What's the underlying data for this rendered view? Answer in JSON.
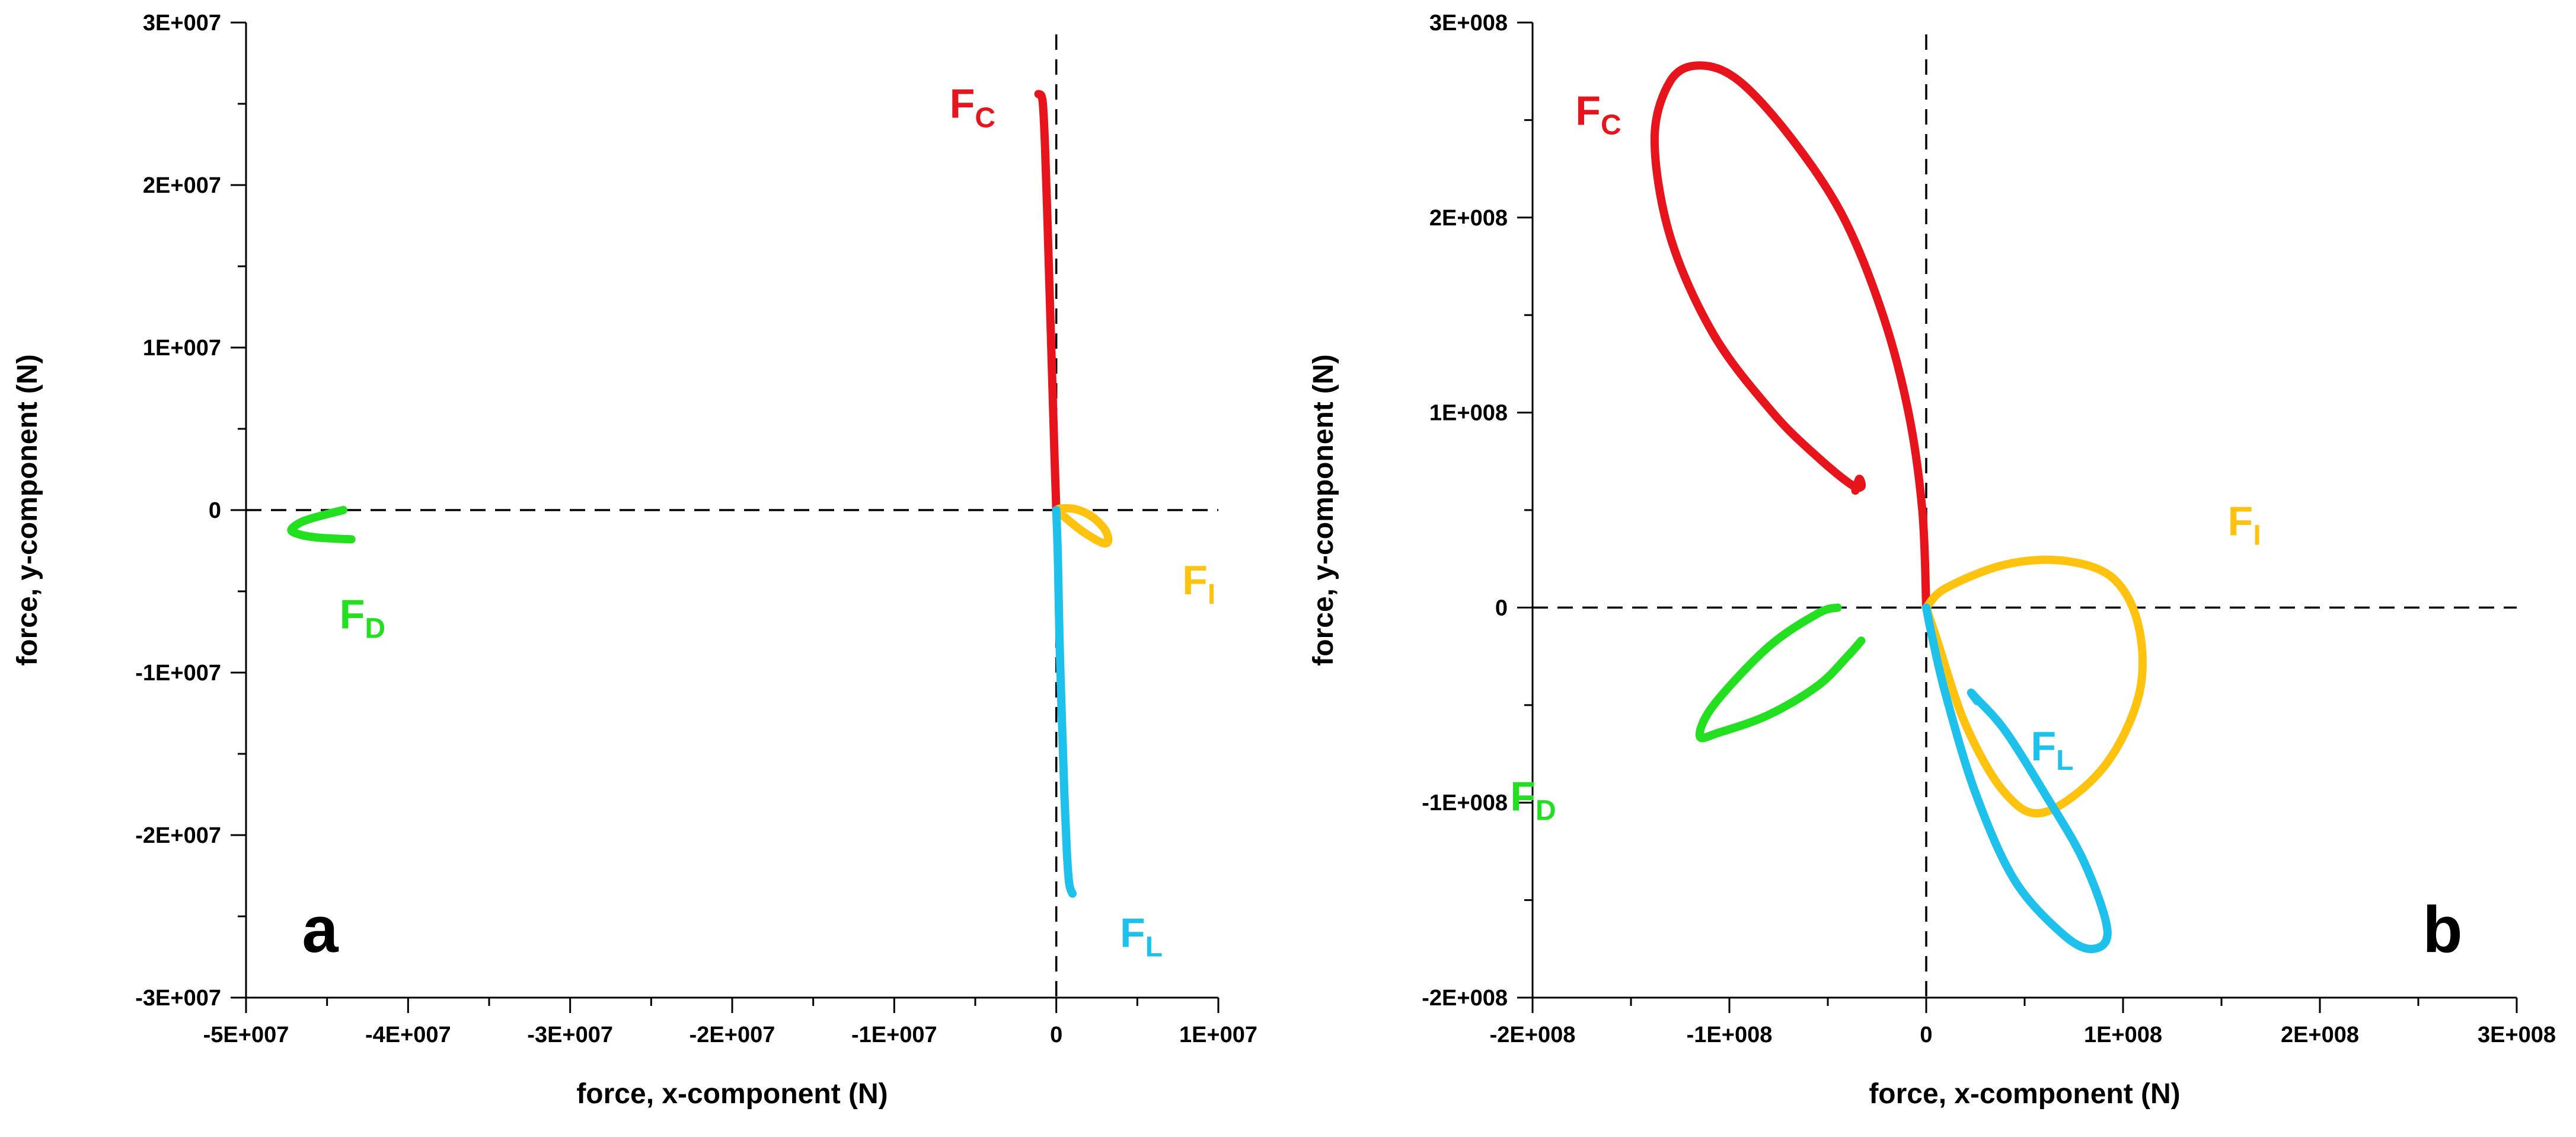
{
  "chart_data": [
    {
      "type": "line",
      "panel_label": "a",
      "xlabel": "force, x-component (N)",
      "ylabel": "force, y-component (N)",
      "xlim": [
        -50000000,
        10000000
      ],
      "ylim": [
        -30000000,
        30000000
      ],
      "x_ticks": [
        -50000000,
        -40000000,
        -30000000,
        -20000000,
        -10000000,
        0,
        10000000
      ],
      "x_tick_labels": [
        "-5E+007",
        "-4E+007",
        "-3E+007",
        "-2E+007",
        "-1E+007",
        "0",
        "1E+007"
      ],
      "y_ticks": [
        -30000000,
        -20000000,
        -10000000,
        0,
        10000000,
        20000000,
        30000000
      ],
      "y_tick_labels": [
        "-3E+007",
        "-2E+007",
        "-1E+007",
        "0",
        "1E+007",
        "2E+007",
        "3E+007"
      ],
      "zero_lines": "dashed",
      "series": [
        {
          "name": "F_C",
          "label_main": "F",
          "label_sub": "C",
          "label_position": "upper-left",
          "color": "#e8141c",
          "points": [
            [
              0,
              0
            ],
            [
              -100000,
              3000000
            ],
            [
              -250000,
              8000000
            ],
            [
              -400000,
              13000000
            ],
            [
              -550000,
              18000000
            ],
            [
              -700000,
              22500000
            ],
            [
              -850000,
              25200000
            ],
            [
              -1100000,
              25600000
            ]
          ]
        },
        {
          "name": "F_I",
          "label_main": "F",
          "label_sub": "I",
          "label_position": "right",
          "color": "#ffc20e",
          "points": [
            [
              0,
              0
            ],
            [
              300000,
              100000
            ],
            [
              1200000,
              50000
            ],
            [
              2200000,
              -400000
            ],
            [
              3000000,
              -1200000
            ],
            [
              3200000,
              -1900000
            ],
            [
              2800000,
              -2000000
            ],
            [
              1600000,
              -1300000
            ],
            [
              600000,
              -500000
            ],
            [
              0,
              0
            ]
          ]
        },
        {
          "name": "F_L",
          "label_main": "F",
          "label_sub": "L",
          "label_position": "lower-right",
          "color": "#1ec0ec",
          "points": [
            [
              0,
              0
            ],
            [
              100000,
              -3000000
            ],
            [
              200000,
              -8000000
            ],
            [
              350000,
              -13000000
            ],
            [
              500000,
              -17500000
            ],
            [
              650000,
              -21000000
            ],
            [
              800000,
              -23000000
            ],
            [
              1000000,
              -23600000
            ]
          ]
        },
        {
          "name": "F_D",
          "label_main": "F",
          "label_sub": "D",
          "label_position": "below",
          "color": "#22e020",
          "points": [
            [
              -43500000,
              -1800000
            ],
            [
              -45500000,
              -1700000
            ],
            [
              -46700000,
              -1500000
            ],
            [
              -47200000,
              -1200000
            ],
            [
              -46500000,
              -700000
            ],
            [
              -45200000,
              -300000
            ],
            [
              -44000000,
              0
            ]
          ]
        }
      ]
    },
    {
      "type": "line",
      "panel_label": "b",
      "xlabel": "force, x-component (N)",
      "ylabel": "force, y-component (N)",
      "xlim": [
        -200000000,
        300000000
      ],
      "ylim": [
        -200000000,
        300000000
      ],
      "x_ticks": [
        -200000000,
        -100000000,
        0,
        100000000,
        200000000,
        300000000
      ],
      "x_tick_labels": [
        "-2E+008",
        "-1E+008",
        "0",
        "1E+008",
        "2E+008",
        "3E+008"
      ],
      "y_ticks": [
        -200000000,
        -100000000,
        0,
        100000000,
        200000000,
        300000000
      ],
      "y_tick_labels": [
        "-2E+008",
        "-1E+008",
        "0",
        "1E+008",
        "2E+008",
        "3E+008"
      ],
      "zero_lines": "dashed",
      "series": [
        {
          "name": "F_C",
          "label_main": "F",
          "label_sub": "C",
          "label_position": "top",
          "color": "#e8141c",
          "points": [
            [
              0,
              0
            ],
            [
              -2000000,
              50000000
            ],
            [
              -9000000,
              100000000
            ],
            [
              -22000000,
              150000000
            ],
            [
              -42000000,
              200000000
            ],
            [
              -68000000,
              240000000
            ],
            [
              -95000000,
              270000000
            ],
            [
              -115000000,
              278000000
            ],
            [
              -130000000,
              270000000
            ],
            [
              -138000000,
              240000000
            ],
            [
              -130000000,
              190000000
            ],
            [
              -108000000,
              140000000
            ],
            [
              -78000000,
              100000000
            ],
            [
              -55000000,
              77000000
            ],
            [
              -38000000,
              63000000
            ],
            [
              -33000000,
              62000000
            ],
            [
              -34000000,
              66000000
            ],
            [
              -36000000,
              60000000
            ]
          ]
        },
        {
          "name": "F_I",
          "label_main": "F",
          "label_sub": "I",
          "label_position": "upper-right",
          "color": "#ffc20e",
          "points": [
            [
              0,
              0
            ],
            [
              10000000,
              10000000
            ],
            [
              40000000,
              22000000
            ],
            [
              70000000,
              24000000
            ],
            [
              95000000,
              15000000
            ],
            [
              108000000,
              -10000000
            ],
            [
              108000000,
              -45000000
            ],
            [
              90000000,
              -82000000
            ],
            [
              60000000,
              -105000000
            ],
            [
              40000000,
              -95000000
            ],
            [
              20000000,
              -60000000
            ],
            [
              5000000,
              -15000000
            ],
            [
              0,
              0
            ]
          ]
        },
        {
          "name": "F_L",
          "label_main": "F",
          "label_sub": "L",
          "label_position": "lower-right",
          "color": "#1ec0ec",
          "points": [
            [
              0,
              0
            ],
            [
              3000000,
              -15000000
            ],
            [
              10000000,
              -45000000
            ],
            [
              25000000,
              -95000000
            ],
            [
              45000000,
              -140000000
            ],
            [
              70000000,
              -168000000
            ],
            [
              85000000,
              -175000000
            ],
            [
              92000000,
              -165000000
            ],
            [
              80000000,
              -130000000
            ],
            [
              60000000,
              -95000000
            ],
            [
              40000000,
              -63000000
            ],
            [
              25000000,
              -46000000
            ],
            [
              23000000,
              -44000000
            ],
            [
              26000000,
              -48000000
            ]
          ]
        },
        {
          "name": "F_D",
          "label_main": "F",
          "label_sub": "D",
          "label_position": "lower-left",
          "color": "#22e020",
          "points": [
            [
              -45000000,
              0
            ],
            [
              -55000000,
              -3000000
            ],
            [
              -80000000,
              -20000000
            ],
            [
              -108000000,
              -50000000
            ],
            [
              -115000000,
              -66000000
            ],
            [
              -105000000,
              -64000000
            ],
            [
              -80000000,
              -55000000
            ],
            [
              -55000000,
              -40000000
            ],
            [
              -40000000,
              -25000000
            ],
            [
              -33000000,
              -17000000
            ]
          ]
        }
      ]
    }
  ]
}
